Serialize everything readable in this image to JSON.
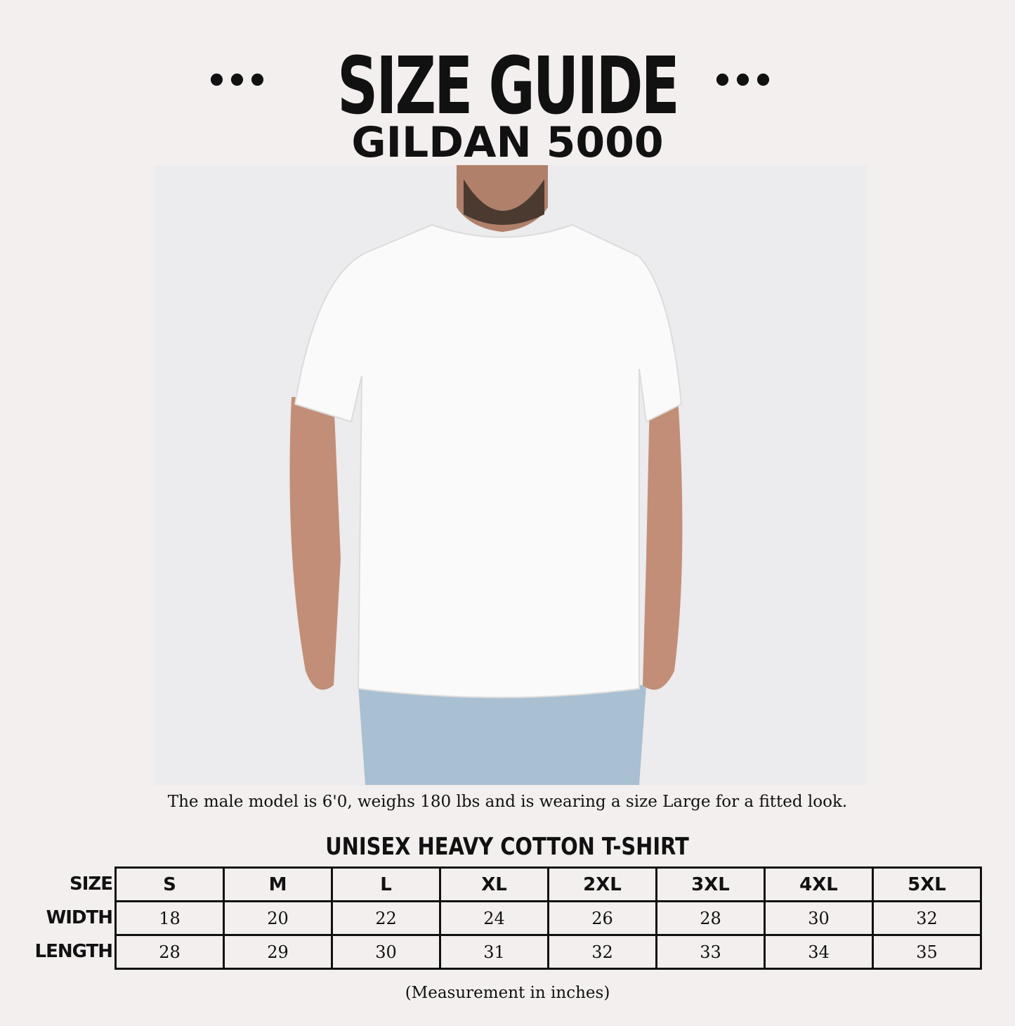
{
  "header": {
    "title": "SIZE GUIDE",
    "subtitle": "GILDAN 5000",
    "dots": "•••"
  },
  "photo": {
    "caption": "The male model is 6'0, weighs 180 lbs and is wearing a size Large for a fitted look."
  },
  "size_table": {
    "title": "UNISEX HEAVY COTTON T-SHIRT",
    "row_labels": [
      "SIZE",
      "WIDTH",
      "LENGTH"
    ],
    "sizes": [
      "S",
      "M",
      "L",
      "XL",
      "2XL",
      "3XL",
      "4XL",
      "5XL"
    ],
    "width": [
      "18",
      "20",
      "22",
      "24",
      "26",
      "28",
      "30",
      "32"
    ],
    "length": [
      "28",
      "29",
      "30",
      "31",
      "32",
      "33",
      "34",
      "35"
    ],
    "note": "(Measurement in inches)"
  }
}
